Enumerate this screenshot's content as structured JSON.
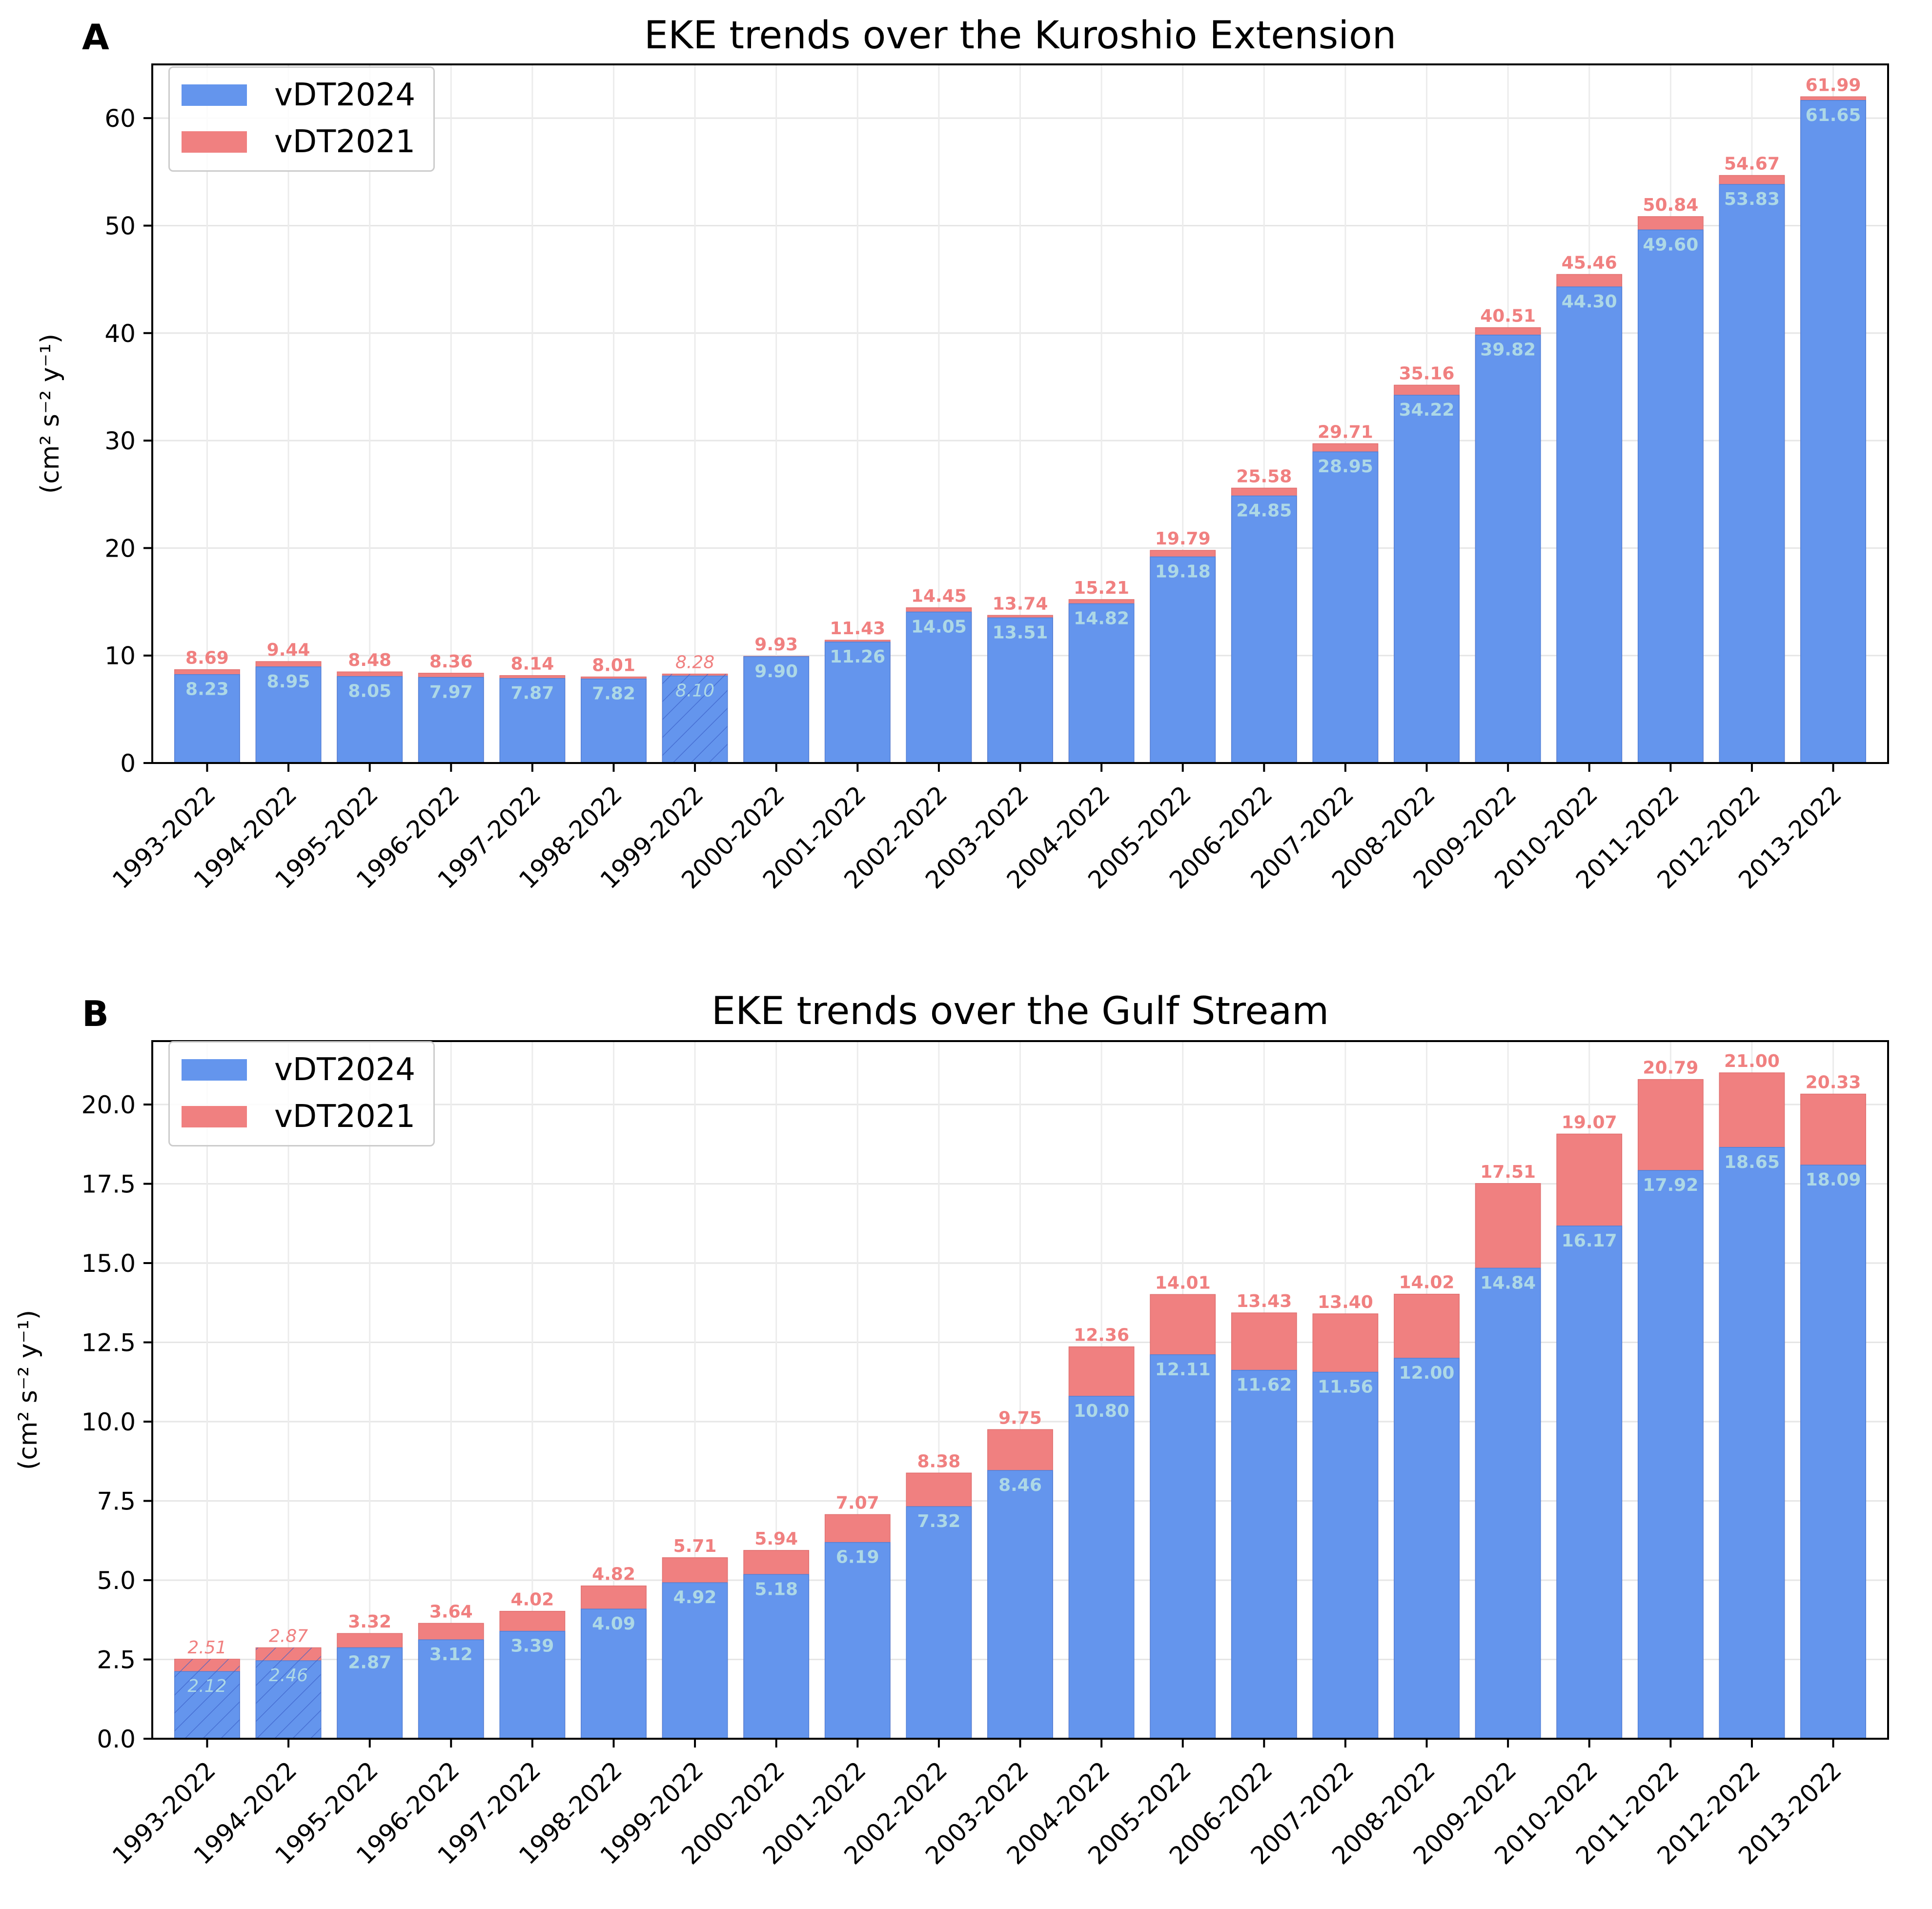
{
  "colors": {
    "vDT2024": "#6495ED",
    "vDT2021": "#F08080",
    "label2024": "#ADD8E6",
    "label2021": "#F08080"
  },
  "panels": [
    {
      "letter": "A",
      "title": "EKE trends over the Kuroshio Extension",
      "ylabel": "(cm² s⁻² y⁻¹)",
      "legend": [
        "vDT2024",
        "vDT2021"
      ],
      "yticks": [
        "0",
        "10",
        "20",
        "30",
        "40",
        "50",
        "60"
      ]
    },
    {
      "letter": "B",
      "title": "EKE trends over the Gulf Stream",
      "ylabel": "(cm² s⁻² y⁻¹)",
      "legend": [
        "vDT2024",
        "vDT2021"
      ],
      "yticks": [
        "0.0",
        "2.5",
        "5.0",
        "7.5",
        "10.0",
        "12.5",
        "15.0",
        "17.5",
        "20.0"
      ]
    }
  ],
  "chart_data": [
    {
      "type": "bar",
      "title": "EKE trends over the Kuroshio Extension",
      "xlabel": "",
      "ylabel": "(cm² s⁻² y⁻¹)",
      "ylim": [
        0,
        65
      ],
      "yticks": [
        0,
        10,
        20,
        30,
        40,
        50,
        60
      ],
      "grid": true,
      "legend_position": "upper-left",
      "categories": [
        "1993-2022",
        "1994-2022",
        "1995-2022",
        "1996-2022",
        "1997-2022",
        "1998-2022",
        "1999-2022",
        "2000-2022",
        "2001-2022",
        "2002-2022",
        "2003-2022",
        "2004-2022",
        "2005-2022",
        "2006-2022",
        "2007-2022",
        "2008-2022",
        "2009-2022",
        "2010-2022",
        "2011-2022",
        "2012-2022",
        "2013-2022"
      ],
      "series": [
        {
          "name": "vDT2024",
          "values": [
            8.23,
            8.95,
            8.05,
            7.97,
            7.87,
            7.82,
            8.1,
            9.9,
            11.26,
            14.05,
            13.51,
            14.82,
            19.18,
            24.85,
            28.95,
            34.22,
            39.82,
            44.3,
            49.6,
            53.83,
            61.65
          ],
          "labels": [
            "8.23",
            "8.95",
            "8.05",
            "7.97",
            "7.87",
            "7.82",
            "8.10",
            "9.90",
            "11.26",
            "14.05",
            "13.51",
            "14.82",
            "19.18",
            "24.85",
            "28.95",
            "34.22",
            "39.82",
            "44.30",
            "49.60",
            "53.83",
            "61.65"
          ]
        },
        {
          "name": "vDT2021",
          "values": [
            8.69,
            9.44,
            8.48,
            8.36,
            8.14,
            8.01,
            8.28,
            9.93,
            11.43,
            14.45,
            13.74,
            15.21,
            19.79,
            25.58,
            29.71,
            35.16,
            40.51,
            45.46,
            50.84,
            54.67,
            61.99
          ],
          "labels": [
            "8.69",
            "9.44",
            "8.48",
            "8.36",
            "8.14",
            "8.01",
            "8.28",
            "9.93",
            "11.43",
            "14.45",
            "13.74",
            "15.21",
            "19.79",
            "25.58",
            "29.71",
            "35.16",
            "40.51",
            "45.46",
            "50.84",
            "54.67",
            "61.99"
          ]
        }
      ],
      "hatched": [
        false,
        false,
        false,
        false,
        false,
        false,
        true,
        false,
        false,
        false,
        false,
        false,
        false,
        false,
        false,
        false,
        false,
        false,
        false,
        false,
        false
      ]
    },
    {
      "type": "bar",
      "title": "EKE trends over the Gulf Stream",
      "xlabel": "",
      "ylabel": "(cm² s⁻² y⁻¹)",
      "ylim": [
        0,
        22
      ],
      "yticks": [
        0,
        2.5,
        5,
        7.5,
        10,
        12.5,
        15,
        17.5,
        20
      ],
      "grid": true,
      "legend_position": "upper-left",
      "categories": [
        "1993-2022",
        "1994-2022",
        "1995-2022",
        "1996-2022",
        "1997-2022",
        "1998-2022",
        "1999-2022",
        "2000-2022",
        "2001-2022",
        "2002-2022",
        "2003-2022",
        "2004-2022",
        "2005-2022",
        "2006-2022",
        "2007-2022",
        "2008-2022",
        "2009-2022",
        "2010-2022",
        "2011-2022",
        "2012-2022",
        "2013-2022"
      ],
      "series": [
        {
          "name": "vDT2024",
          "values": [
            2.12,
            2.46,
            2.87,
            3.12,
            3.39,
            4.09,
            4.92,
            5.18,
            6.19,
            7.32,
            8.46,
            10.8,
            12.11,
            11.62,
            11.56,
            12.0,
            14.84,
            16.17,
            17.92,
            18.65,
            18.09
          ],
          "labels": [
            "2.12",
            "2.46",
            "2.87",
            "3.12",
            "3.39",
            "4.09",
            "4.92",
            "5.18",
            "6.19",
            "7.32",
            "8.46",
            "10.80",
            "12.11",
            "11.62",
            "11.56",
            "12.00",
            "14.84",
            "16.17",
            "17.92",
            "18.65",
            "18.09"
          ]
        },
        {
          "name": "vDT2021",
          "values": [
            2.51,
            2.87,
            3.32,
            3.64,
            4.02,
            4.82,
            5.71,
            5.94,
            7.07,
            8.38,
            9.75,
            12.36,
            14.01,
            13.43,
            13.4,
            14.02,
            17.51,
            19.07,
            20.79,
            21.0,
            20.33
          ],
          "labels": [
            "2.51",
            "2.87",
            "3.32",
            "3.64",
            "4.02",
            "4.82",
            "5.71",
            "5.94",
            "7.07",
            "8.38",
            "9.75",
            "12.36",
            "14.01",
            "13.43",
            "13.40",
            "14.02",
            "17.51",
            "19.07",
            "20.79",
            "21.00",
            "20.33"
          ]
        }
      ],
      "hatched": [
        true,
        true,
        false,
        false,
        false,
        false,
        false,
        false,
        false,
        false,
        false,
        false,
        false,
        false,
        false,
        false,
        false,
        false,
        false,
        false,
        false
      ]
    }
  ]
}
